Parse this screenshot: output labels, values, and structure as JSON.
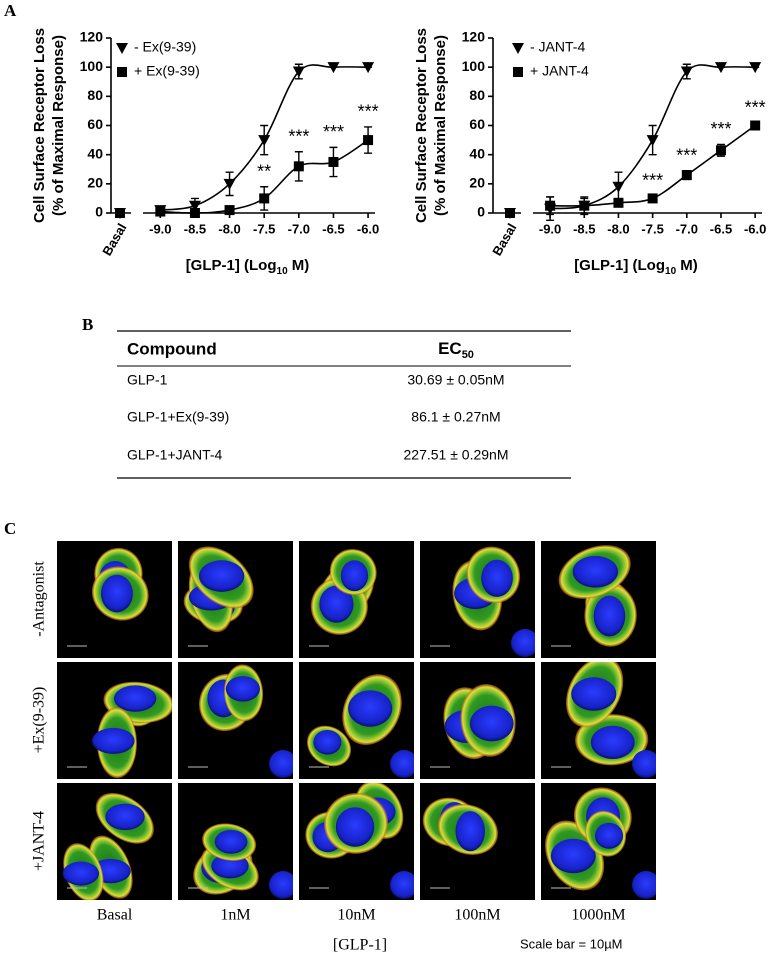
{
  "panel_labels": [
    "A",
    "B",
    "C"
  ],
  "chart_data": [
    {
      "type": "line",
      "y_label": [
        "Cell Surface Receptor Loss",
        "(% of Maximal Response)"
      ],
      "x_label": {
        "before": "[GLP-1] (Log",
        "sub": "10",
        "after": " M)"
      },
      "basal_label": "Basal",
      "x": [
        -9.0,
        -8.5,
        -8.0,
        -7.5,
        -7.0,
        -6.5,
        -6.0
      ],
      "series": [
        {
          "name": "- Ex(9-39)",
          "color": "#000000",
          "marker": "triangle-down",
          "basal": 0,
          "basal_error": 0,
          "values": [
            2,
            5,
            20,
            50,
            97,
            100,
            100
          ],
          "errors": [
            2,
            5,
            8,
            10,
            5,
            0,
            0
          ]
        },
        {
          "name": "+ Ex(9-39)",
          "color": "#000000",
          "marker": "square",
          "basal": 0,
          "basal_error": 2,
          "values": [
            1,
            0,
            2,
            10,
            32,
            35,
            50
          ],
          "errors": [
            2,
            1,
            2,
            8,
            10,
            10,
            9
          ]
        }
      ],
      "annotations": [
        {
          "text": "**",
          "x": -7.5
        },
        {
          "text": "***",
          "x": -7.0
        },
        {
          "text": "***",
          "x": -6.5
        },
        {
          "text": "***",
          "x": -6.0
        }
      ],
      "xlim": [
        -9.25,
        -5.9
      ],
      "xticks": [
        {
          "value": -9.0,
          "label": "-9.0"
        },
        {
          "value": -8.5,
          "label": "-8.5"
        },
        {
          "value": -8.0,
          "label": "-8.0"
        },
        {
          "value": -7.5,
          "label": "-7.5"
        },
        {
          "value": -7.0,
          "label": "-7.0"
        },
        {
          "value": -6.5,
          "label": "-6.5"
        },
        {
          "value": -6.0,
          "label": "-6.0"
        }
      ],
      "ylim": [
        0,
        120
      ],
      "yticks": [
        0,
        20,
        40,
        60,
        80,
        100,
        120
      ],
      "grid": false,
      "legend": "upper left"
    },
    {
      "type": "line",
      "y_label": [
        "Cell Surface Receptor Loss",
        "(% of Maximal Response)"
      ],
      "x_label": {
        "before": "[GLP-1] (Log",
        "sub": "10",
        "after": " M)"
      },
      "basal_label": "Basal",
      "x": [
        -9.0,
        -8.5,
        -8.0,
        -7.5,
        -7.0,
        -6.5,
        -6.0
      ],
      "series": [
        {
          "name": "- JANT-4",
          "color": "#000000",
          "marker": "triangle-down",
          "basal": 0,
          "basal_error": 0,
          "values": [
            3,
            5,
            18,
            50,
            97,
            100,
            100
          ],
          "errors": [
            8,
            6,
            10,
            10,
            5,
            0,
            0
          ]
        },
        {
          "name": "+ JANT-4",
          "color": "#000000",
          "marker": "square",
          "basal": 0,
          "basal_error": 2,
          "values": [
            5,
            5,
            7,
            10,
            26,
            43,
            60
          ],
          "errors": [
            6,
            5,
            2,
            2,
            3,
            4,
            2
          ]
        }
      ],
      "annotations": [
        {
          "text": "***",
          "x": -7.5
        },
        {
          "text": "***",
          "x": -7.0
        },
        {
          "text": "***",
          "x": -6.5
        },
        {
          "text": "***",
          "x": -6.0
        }
      ],
      "xlim": [
        -9.25,
        -5.9
      ],
      "xticks": [
        {
          "value": -9.0,
          "label": "-9.0"
        },
        {
          "value": -8.5,
          "label": "-8.5"
        },
        {
          "value": -8.0,
          "label": "-8.0"
        },
        {
          "value": -7.5,
          "label": "-7.5"
        },
        {
          "value": -7.0,
          "label": "-7.0"
        },
        {
          "value": -6.5,
          "label": "-6.5"
        },
        {
          "value": -6.0,
          "label": "-6.0"
        }
      ],
      "ylim": [
        0,
        120
      ],
      "yticks": [
        0,
        20,
        40,
        60,
        80,
        100,
        120
      ],
      "grid": false,
      "legend": "upper left"
    }
  ],
  "table": {
    "header": [
      "Compound",
      {
        "text": "EC",
        "sub": "50"
      }
    ],
    "rows": [
      [
        "GLP-1",
        "30.69 ± 0.05nM"
      ],
      [
        "GLP-1+Ex(9-39)",
        "86.1 ± 0.27nM"
      ],
      [
        "GLP-1+JANT-4",
        "227.51 ± 0.29nM"
      ]
    ]
  },
  "microscopy": {
    "row_labels": [
      "-Antagonist",
      "+Ex(9-39)",
      "+JANT-4"
    ],
    "column_labels": [
      "Basal",
      "1nM",
      "10nM",
      "100nM",
      "1000nM"
    ],
    "axis_label": "[GLP-1]",
    "scale_note": "Scale bar = 10µM"
  }
}
